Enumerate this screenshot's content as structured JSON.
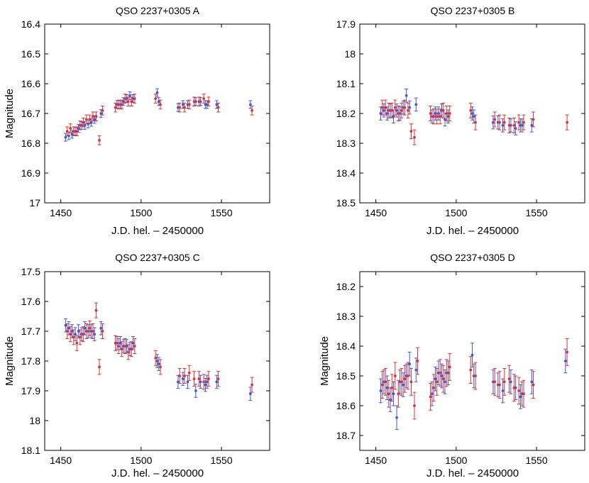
{
  "chart_data": [
    {
      "type": "scatter",
      "title": "QSO 2237+0305 A",
      "xlabel": "J.D. hel. – 2450000",
      "ylabel": "Magnitude",
      "xlim": [
        1440,
        1580
      ],
      "ylim": [
        16.4,
        17.0
      ],
      "y_inverted": true,
      "xticks": [
        1450,
        1500,
        1550
      ],
      "xtick_labels": [
        "1450",
        "1500",
        "1550"
      ],
      "yticks": [
        16.4,
        16.5,
        16.6,
        16.7,
        16.8,
        16.9,
        17.0
      ],
      "ytick_labels": [
        "16.4",
        "16.5",
        "16.6",
        "16.7",
        "16.8",
        "16.9",
        "17"
      ],
      "series": [
        {
          "name": "blue",
          "color": "#3b5bdb",
          "error": 0.013,
          "x": [
            1453,
            1455,
            1457,
            1459,
            1461,
            1463,
            1465,
            1467,
            1469,
            1471,
            1475,
            1485,
            1487,
            1489,
            1491,
            1493,
            1495,
            1510,
            1511,
            1523,
            1526,
            1529,
            1534,
            1537,
            1540,
            1541,
            1547,
            1568
          ],
          "y": [
            16.78,
            16.775,
            16.77,
            16.76,
            16.75,
            16.74,
            16.74,
            16.735,
            16.73,
            16.72,
            16.7,
            16.67,
            16.67,
            16.66,
            16.65,
            16.64,
            16.65,
            16.63,
            16.66,
            16.68,
            16.67,
            16.67,
            16.66,
            16.66,
            16.67,
            16.67,
            16.67,
            16.67
          ]
        },
        {
          "name": "red",
          "color": "#e03131",
          "error": 0.015,
          "x": [
            1454,
            1456,
            1458,
            1460,
            1462,
            1464,
            1466,
            1468,
            1470,
            1472,
            1474,
            1476,
            1484,
            1486,
            1488,
            1490,
            1492,
            1494,
            1496,
            1509,
            1512,
            1524,
            1527,
            1530,
            1533,
            1536,
            1539,
            1542,
            1548,
            1569
          ],
          "y": [
            16.76,
            16.75,
            16.76,
            16.76,
            16.74,
            16.73,
            16.72,
            16.72,
            16.71,
            16.71,
            16.79,
            16.69,
            16.68,
            16.67,
            16.67,
            16.65,
            16.66,
            16.66,
            16.65,
            16.65,
            16.67,
            16.68,
            16.68,
            16.67,
            16.66,
            16.66,
            16.65,
            16.66,
            16.68,
            16.69
          ]
        }
      ]
    },
    {
      "type": "scatter",
      "title": "QSO 2237+0305 B",
      "xlabel": "J.D. hel. – 2450000",
      "ylabel": "",
      "xlim": [
        1440,
        1580
      ],
      "ylim": [
        17.9,
        18.5
      ],
      "y_inverted": true,
      "xticks": [
        1450,
        1500,
        1550
      ],
      "xtick_labels": [
        "1450",
        "1500",
        "1550"
      ],
      "yticks": [
        17.9,
        18.0,
        18.1,
        18.2,
        18.3,
        18.4,
        18.5
      ],
      "ytick_labels": [
        "17.9",
        "18",
        "18.1",
        "18.2",
        "18.3",
        "18.4",
        "18.5"
      ],
      "series": [
        {
          "name": "blue",
          "color": "#3b5bdb",
          "error": 0.022,
          "x": [
            1453,
            1455,
            1457,
            1459,
            1461,
            1463,
            1465,
            1467,
            1469,
            1471,
            1475,
            1485,
            1487,
            1489,
            1491,
            1493,
            1495,
            1510,
            1511,
            1523,
            1526,
            1529,
            1534,
            1537,
            1540,
            1541,
            1547
          ],
          "y": [
            18.2,
            18.19,
            18.2,
            18.19,
            18.21,
            18.19,
            18.2,
            18.18,
            18.14,
            18.18,
            18.17,
            18.21,
            18.2,
            18.2,
            18.19,
            18.22,
            18.21,
            18.2,
            18.21,
            18.23,
            18.23,
            18.24,
            18.24,
            18.25,
            18.24,
            18.24,
            18.24
          ]
        },
        {
          "name": "red",
          "color": "#e03131",
          "error": 0.025,
          "x": [
            1454,
            1456,
            1458,
            1460,
            1462,
            1464,
            1466,
            1468,
            1470,
            1472,
            1474,
            1484,
            1486,
            1488,
            1490,
            1492,
            1494,
            1496,
            1509,
            1512,
            1524,
            1527,
            1530,
            1533,
            1536,
            1539,
            1542,
            1548,
            1569
          ],
          "y": [
            18.18,
            18.18,
            18.19,
            18.19,
            18.18,
            18.2,
            18.19,
            18.18,
            18.19,
            18.26,
            18.28,
            18.2,
            18.21,
            18.21,
            18.21,
            18.19,
            18.2,
            18.2,
            18.19,
            18.23,
            18.22,
            18.23,
            18.23,
            18.24,
            18.24,
            18.23,
            18.23,
            18.22,
            18.23
          ]
        }
      ]
    },
    {
      "type": "scatter",
      "title": "QSO 2237+0305 C",
      "xlabel": "J.D. hel. – 2450000",
      "ylabel": "Magnitude",
      "xlim": [
        1440,
        1580
      ],
      "ylim": [
        17.5,
        18.1
      ],
      "y_inverted": true,
      "xticks": [
        1450,
        1500,
        1550
      ],
      "xtick_labels": [
        "1450",
        "1500",
        "1550"
      ],
      "yticks": [
        17.5,
        17.6,
        17.7,
        17.8,
        17.9,
        18.0,
        18.1
      ],
      "ytick_labels": [
        "17.5",
        "17.6",
        "17.7",
        "17.8",
        "17.9",
        "18",
        "18.1"
      ],
      "series": [
        {
          "name": "blue",
          "color": "#3b5bdb",
          "error": 0.022,
          "x": [
            1453,
            1455,
            1457,
            1459,
            1461,
            1463,
            1465,
            1467,
            1469,
            1471,
            1475,
            1485,
            1487,
            1489,
            1491,
            1493,
            1495,
            1510,
            1511,
            1523,
            1526,
            1529,
            1534,
            1537,
            1540,
            1541,
            1547,
            1568
          ],
          "y": [
            17.68,
            17.69,
            17.7,
            17.71,
            17.7,
            17.71,
            17.69,
            17.7,
            17.7,
            17.71,
            17.69,
            17.74,
            17.74,
            17.75,
            17.75,
            17.76,
            17.74,
            17.8,
            17.81,
            17.87,
            17.86,
            17.87,
            17.9,
            17.87,
            17.88,
            17.87,
            17.87,
            17.91
          ]
        },
        {
          "name": "red",
          "color": "#e03131",
          "error": 0.025,
          "x": [
            1454,
            1456,
            1458,
            1460,
            1462,
            1464,
            1466,
            1468,
            1470,
            1472,
            1474,
            1476,
            1484,
            1486,
            1488,
            1490,
            1492,
            1494,
            1496,
            1509,
            1512,
            1524,
            1527,
            1530,
            1533,
            1536,
            1539,
            1542,
            1548,
            1569
          ],
          "y": [
            17.7,
            17.71,
            17.72,
            17.74,
            17.72,
            17.71,
            17.7,
            17.69,
            17.7,
            17.63,
            17.82,
            17.7,
            17.74,
            17.75,
            17.76,
            17.75,
            17.77,
            17.76,
            17.75,
            17.79,
            17.82,
            17.85,
            17.85,
            17.84,
            17.86,
            17.86,
            17.87,
            17.86,
            17.86,
            17.88
          ]
        }
      ]
    },
    {
      "type": "scatter",
      "title": "QSO 2237+0305 D",
      "xlabel": "J.D. hel. – 2450000",
      "ylabel": "Magnitude",
      "xlim": [
        1440,
        1580
      ],
      "ylim": [
        18.15,
        18.75
      ],
      "y_inverted": true,
      "xticks": [
        1450,
        1500,
        1550
      ],
      "xtick_labels": [
        "1450",
        "1500",
        "1550"
      ],
      "yticks": [
        18.2,
        18.3,
        18.4,
        18.5,
        18.6,
        18.7
      ],
      "ytick_labels": [
        "18.2",
        "18.3",
        "18.4",
        "18.5",
        "18.6",
        "18.7"
      ],
      "series": [
        {
          "name": "blue",
          "color": "#3b5bdb",
          "error": 0.04,
          "x": [
            1453,
            1455,
            1457,
            1459,
            1461,
            1463,
            1465,
            1467,
            1469,
            1471,
            1475,
            1485,
            1487,
            1489,
            1491,
            1493,
            1495,
            1510,
            1511,
            1523,
            1526,
            1529,
            1534,
            1537,
            1540,
            1541,
            1547,
            1568
          ],
          "y": [
            18.55,
            18.52,
            18.54,
            18.58,
            18.56,
            18.64,
            18.52,
            18.53,
            18.5,
            18.46,
            18.48,
            18.56,
            18.51,
            18.49,
            18.5,
            18.52,
            18.49,
            18.43,
            18.5,
            18.52,
            18.53,
            18.55,
            18.52,
            18.54,
            18.57,
            18.56,
            18.52,
            18.45
          ]
        },
        {
          "name": "red",
          "color": "#e03131",
          "error": 0.045,
          "x": [
            1454,
            1456,
            1458,
            1460,
            1462,
            1464,
            1466,
            1468,
            1470,
            1472,
            1474,
            1476,
            1484,
            1486,
            1488,
            1490,
            1492,
            1494,
            1496,
            1509,
            1512,
            1524,
            1527,
            1530,
            1533,
            1536,
            1539,
            1542,
            1548,
            1569
          ],
          "y": [
            18.53,
            18.52,
            18.56,
            18.54,
            18.5,
            18.56,
            18.52,
            18.51,
            18.5,
            18.52,
            18.6,
            18.45,
            18.57,
            18.54,
            18.52,
            18.49,
            18.51,
            18.49,
            18.47,
            18.48,
            18.5,
            18.52,
            18.53,
            18.52,
            18.51,
            18.54,
            18.55,
            18.56,
            18.53,
            18.42
          ]
        }
      ]
    }
  ]
}
